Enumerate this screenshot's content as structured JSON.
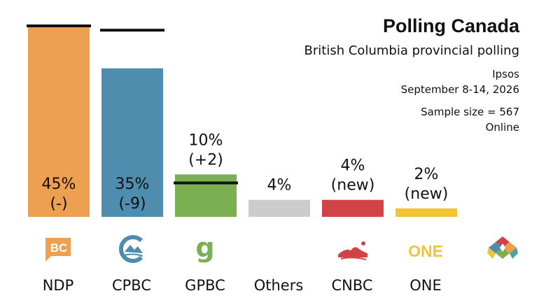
{
  "header": {
    "title": "Polling Canada",
    "subtitle": "British Columbia provincial polling",
    "pollster": "Ipsos",
    "dates": "September 8-14, 2026",
    "sample": "Sample size = 567",
    "method": "Online"
  },
  "chart_data": {
    "type": "bar",
    "categories": [
      "NDP",
      "CPBC",
      "GPBC",
      "Others",
      "CNBC",
      "ONE"
    ],
    "values": [
      45,
      35,
      10,
      4,
      4,
      2
    ],
    "changes": [
      "(-)",
      "(-9)",
      "(+2)",
      "",
      "(new)",
      "(new)"
    ],
    "previous": [
      45,
      44,
      8,
      null,
      null,
      null
    ],
    "value_labels": [
      "45%",
      "35%",
      "10%",
      "4%",
      "4%",
      "2%"
    ],
    "colors": [
      "#EDA04F",
      "#4F8DAF",
      "#7AAF52",
      "#CCCCCC",
      "#D04346",
      "#F0C537"
    ],
    "ylim": [
      0,
      45
    ],
    "legend": "none",
    "grid": false
  },
  "logos": [
    {
      "name": "bc-ndp-logo",
      "text": "BC",
      "color": "#EDA04F"
    },
    {
      "name": "conservative-bc-logo",
      "color": "#4F8DAF"
    },
    {
      "name": "green-party-logo",
      "text": "g",
      "color": "#7AAF52"
    },
    {
      "name": "others-none",
      "color": ""
    },
    {
      "name": "centre-bc-logo",
      "color": "#D04346"
    },
    {
      "name": "one-bc-logo",
      "text": "ONE",
      "color": "#F0C537"
    },
    {
      "name": "polling-canada-logo",
      "color": ""
    }
  ]
}
